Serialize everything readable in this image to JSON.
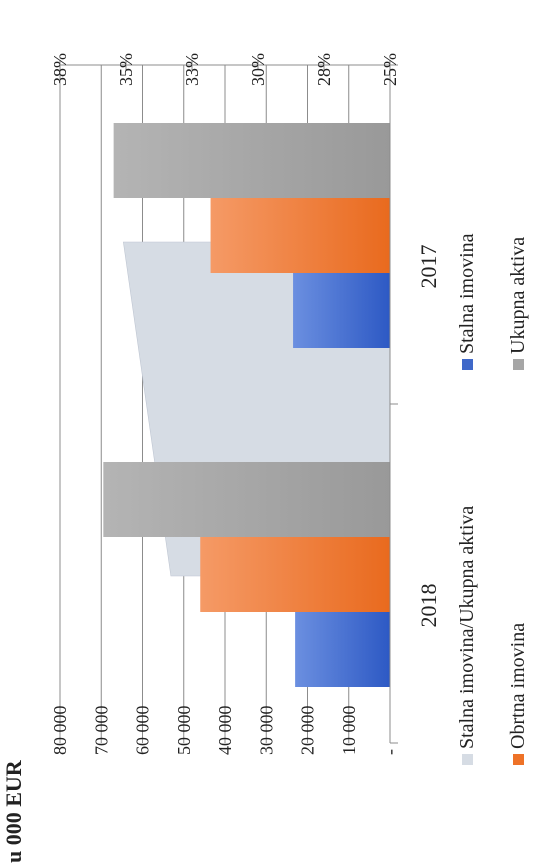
{
  "chart_data": {
    "type": "bar",
    "orientation": "rotated-90-clockwise",
    "unit_label": "u 000  EUR",
    "categories": [
      "2018",
      "2017"
    ],
    "series": [
      {
        "name": "Stalna imovina",
        "axis": "primary",
        "values": [
          23000,
          23500
        ],
        "color": "#3f68c9"
      },
      {
        "name": "Obrtna imovina",
        "axis": "primary",
        "values": [
          46000,
          43500
        ],
        "color": "#ee7227"
      },
      {
        "name": "Ukupna aktiva",
        "axis": "primary",
        "values": [
          69500,
          67000
        ],
        "color": "#a6a6a6"
      },
      {
        "name": "Stalna imovina/Ukupna aktiva",
        "axis": "secondary",
        "type": "area",
        "values": [
          33.3,
          35.1
        ],
        "color": "#d6dce4"
      }
    ],
    "primary_axis": {
      "min": 0,
      "max": 80000,
      "ticks": [
        "-",
        "10 000",
        "20 000",
        "30 000",
        "40 000",
        "50 000",
        "60 000",
        "70 000",
        "80 000"
      ]
    },
    "secondary_axis": {
      "min": 25,
      "max": 37.5,
      "ticks": [
        "25%",
        "28%",
        "30%",
        "33%",
        "35%",
        "38%"
      ]
    },
    "legend": {
      "position": "bottom",
      "items": [
        "Stalna imovina/Ukupna aktiva",
        "Stalna imovina",
        "Obrtna imovina",
        "Ukupna aktiva"
      ]
    },
    "grid": true
  }
}
